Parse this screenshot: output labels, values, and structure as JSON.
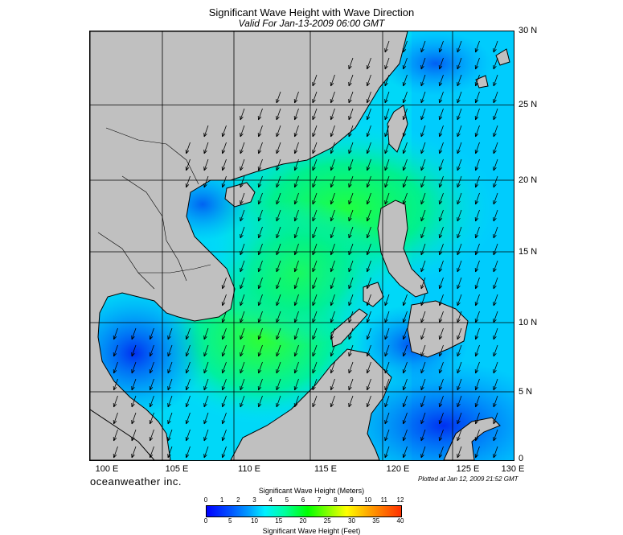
{
  "header": {
    "title": "Significant Wave Height with Wave Direction",
    "subtitle": "Valid For Jan-13-2009 06:00 GMT"
  },
  "map": {
    "lon_labels": [
      "100 E",
      "105 E",
      "110 E",
      "115 E",
      "120 E",
      "125 E",
      "130 E"
    ],
    "lat_labels": [
      "30 N",
      "25 N",
      "20 N",
      "15 N",
      "10 N",
      "5 N",
      "0"
    ],
    "land_color": "#c0c0c0",
    "arrow_color": "#000000"
  },
  "footer": {
    "brand": "oceanweather inc.",
    "plotted": "Plotted at Jan 12, 2009 21:52 GMT"
  },
  "colorbar": {
    "meters_title": "Significant Wave Height (Meters)",
    "feet_title": "Significant Wave Height (Feet)",
    "meters_ticks": [
      "0",
      "1",
      "2",
      "3",
      "4",
      "5",
      "6",
      "7",
      "8",
      "9",
      "10",
      "11",
      "12"
    ],
    "feet_ticks": [
      "0",
      "5",
      "10",
      "15",
      "20",
      "25",
      "30",
      "35",
      "40"
    ]
  }
}
